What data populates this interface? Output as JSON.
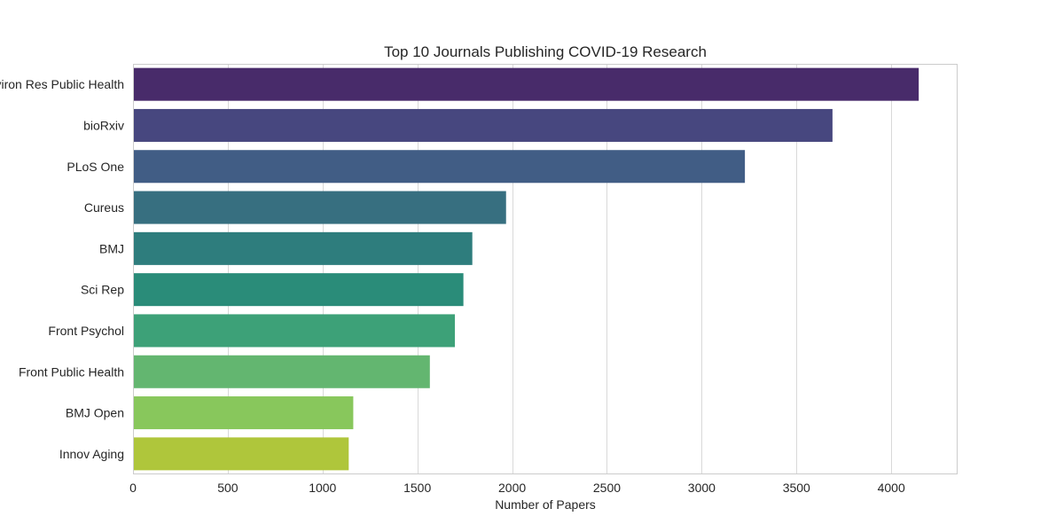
{
  "chart_data": {
    "type": "bar",
    "orientation": "horizontal",
    "title": "Top 10 Journals Publishing COVID-19 Research",
    "xlabel": "Number of Papers",
    "ylabel": "",
    "categories": [
      "Int J Environ Res Public Health",
      "bioRxiv",
      "PLoS One",
      "Cureus",
      "BMJ",
      "Sci Rep",
      "Front Psychol",
      "Front Public Health",
      "BMJ Open",
      "Innov Aging"
    ],
    "values": [
      4145,
      3690,
      3228,
      1968,
      1790,
      1743,
      1698,
      1566,
      1162,
      1138
    ],
    "xlim": [
      0,
      4350
    ],
    "xticks": [
      0,
      500,
      1000,
      1500,
      2000,
      2500,
      3000,
      3500,
      4000
    ],
    "grid": true,
    "legend": "none",
    "colors": [
      "#482b6a",
      "#47477f",
      "#415d85",
      "#376f80",
      "#2e7d7d",
      "#2a8c79",
      "#3da178",
      "#63b670",
      "#88c75c",
      "#afc63b"
    ]
  }
}
